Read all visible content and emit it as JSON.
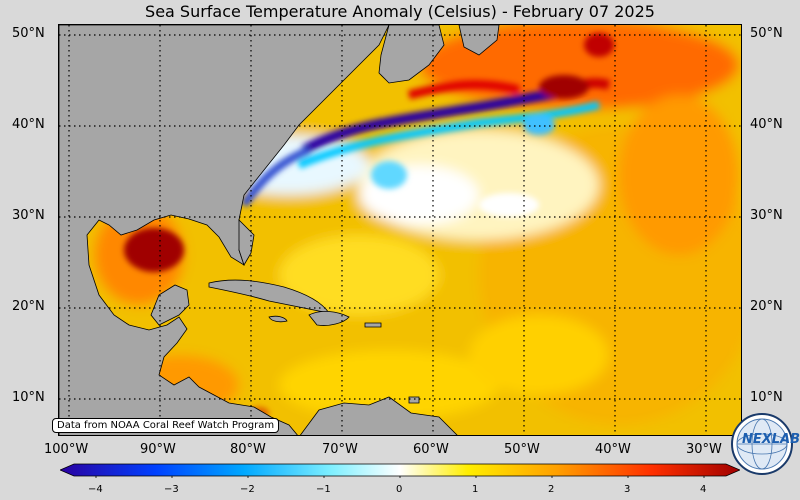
{
  "title": "Sea Surface Temperature Anomaly (Celsius) - February 07 2025",
  "lat_labels": [
    "50°N",
    "40°N",
    "30°N",
    "20°N",
    "10°N"
  ],
  "lon_labels": [
    "100°W",
    "90°W",
    "80°W",
    "70°W",
    "60°W",
    "50°W",
    "40°W",
    "30°W"
  ],
  "credit": "Data from NOAA Coral Reef Watch Program",
  "colorbar": {
    "ticks": [
      "−4",
      "−3",
      "−2",
      "−1",
      "0",
      "1",
      "2",
      "3",
      "4"
    ],
    "range": [
      -4,
      4
    ],
    "colors": [
      "#2a00a0",
      "#0066ff",
      "#00ccff",
      "#ffffff",
      "#ffe000",
      "#ff9900",
      "#ff3300",
      "#a00000"
    ]
  },
  "logo": {
    "text": "NEXLAB",
    "icon": "globe-logo"
  },
  "colors": {
    "land": "#a6a6a6",
    "ocean_base": "#f2c200",
    "background": "#d9d9d9"
  }
}
